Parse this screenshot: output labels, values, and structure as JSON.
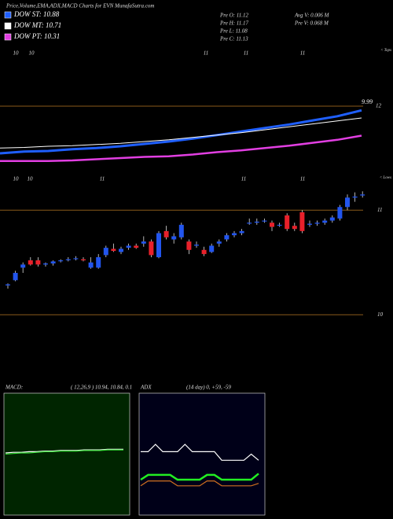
{
  "header": {
    "title": "Price,Volume,EMA,ADX,MACD Charts for EVN MunafaSutra.com",
    "info": [
      "Pre  O: 11.12",
      "Pre  H: 11.17",
      "Pre  L: 11.08",
      "Pre  C: 11.13"
    ],
    "info2": [
      "Avg V: 0.006  M",
      "Pre  V: 0.068  M"
    ]
  },
  "chart_data": [
    {
      "type": "line",
      "top_labels": [
        "10",
        "10",
        "11",
        "11",
        "11"
      ],
      "side_label": "< Tops",
      "annotation": "9.99",
      "ylim": [
        11,
        13
      ],
      "yticks": [
        12
      ],
      "legend": "top-left",
      "series": [
        {
          "name": "DOW ST: 10.88",
          "color": "#1f5fff",
          "values": [
            11.2,
            11.23,
            11.24,
            11.27,
            11.29,
            11.32,
            11.36,
            11.4,
            11.45,
            11.51,
            11.57,
            11.63,
            11.69,
            11.76,
            11.83,
            11.93
          ]
        },
        {
          "name": "DOW MT: 10.71",
          "color": "#ffffff",
          "values": [
            11.29,
            11.3,
            11.32,
            11.33,
            11.35,
            11.37,
            11.4,
            11.43,
            11.47,
            11.51,
            11.55,
            11.6,
            11.65,
            11.7,
            11.75,
            11.8
          ]
        },
        {
          "name": "DOW PT: 10.31",
          "color": "#e23fe2",
          "values": [
            11.07,
            11.07,
            11.07,
            11.08,
            11.1,
            11.12,
            11.14,
            11.15,
            11.18,
            11.22,
            11.25,
            11.29,
            11.33,
            11.38,
            11.43,
            11.5
          ]
        }
      ]
    },
    {
      "type": "candlestick",
      "top_labels": [
        "10",
        "10",
        "11",
        "11",
        "11"
      ],
      "side_label": "< Lows",
      "ylim": [
        9.4,
        11.28
      ],
      "yticks": [
        10,
        11
      ],
      "up_color": "#2255ee",
      "down_color": "#e8202a",
      "open": [
        10.28,
        10.33,
        10.45,
        10.52,
        10.52,
        10.48,
        10.49,
        10.52,
        10.53,
        10.54,
        10.53,
        10.45,
        10.45,
        10.57,
        10.63,
        10.6,
        10.64,
        10.66,
        10.68,
        10.7,
        10.55,
        10.8,
        10.72,
        10.74,
        10.7,
        10.66,
        10.62,
        10.6,
        10.68,
        10.72,
        10.76,
        10.78,
        10.88,
        10.88,
        10.9,
        10.88,
        10.86,
        10.95,
        10.85,
        10.98,
        10.86,
        10.87,
        10.88,
        10.9,
        10.92,
        11.03,
        11.12,
        11.14
      ],
      "high": [
        10.3,
        10.42,
        10.5,
        10.55,
        10.55,
        10.5,
        10.52,
        10.53,
        10.55,
        10.56,
        10.55,
        10.55,
        10.58,
        10.66,
        10.68,
        10.65,
        10.68,
        10.68,
        10.75,
        10.72,
        10.8,
        10.85,
        10.78,
        10.88,
        10.72,
        10.7,
        10.65,
        10.68,
        10.72,
        10.78,
        10.8,
        10.82,
        10.92,
        10.92,
        10.92,
        10.9,
        10.88,
        10.97,
        10.88,
        11.0,
        10.9,
        10.9,
        10.92,
        10.95,
        11.05,
        11.15,
        11.17,
        11.18
      ],
      "low": [
        10.25,
        10.32,
        10.4,
        10.47,
        10.46,
        10.46,
        10.47,
        10.5,
        10.51,
        10.52,
        10.51,
        10.44,
        10.44,
        10.55,
        10.6,
        10.58,
        10.62,
        10.63,
        10.65,
        10.55,
        10.54,
        10.72,
        10.68,
        10.72,
        10.58,
        10.64,
        10.56,
        10.59,
        10.65,
        10.7,
        10.74,
        10.76,
        10.86,
        10.86,
        10.88,
        10.8,
        10.84,
        10.8,
        10.8,
        10.78,
        10.84,
        10.85,
        10.86,
        10.88,
        10.9,
        11.0,
        11.08,
        11.12
      ],
      "close": [
        10.29,
        10.4,
        10.48,
        10.48,
        10.48,
        10.49,
        10.51,
        10.52,
        10.53,
        10.54,
        10.52,
        10.5,
        10.55,
        10.64,
        10.61,
        10.63,
        10.66,
        10.64,
        10.7,
        10.57,
        10.78,
        10.74,
        10.75,
        10.86,
        10.62,
        10.67,
        10.58,
        10.66,
        10.7,
        10.76,
        10.78,
        10.8,
        10.88,
        10.89,
        10.9,
        10.84,
        10.86,
        10.82,
        10.82,
        10.8,
        10.87,
        10.88,
        10.9,
        10.93,
        11.03,
        11.12,
        11.13,
        11.15
      ]
    },
    {
      "type": "line",
      "title": "MACD:",
      "subtitle": "( 12,26,9 ) 10.94, 10.84, 0.1",
      "ylim": [
        -1,
        1
      ],
      "background": "#002500",
      "series": [
        {
          "color": "#ffffff",
          "values": [
            0.02,
            0.03,
            0.03,
            0.04,
            0.04,
            0.05,
            0.05,
            0.06,
            0.06,
            0.06,
            0.07,
            0.07,
            0.07,
            0.08,
            0.08,
            0.08
          ]
        },
        {
          "color": "#33dd33",
          "values": [
            0.0,
            0.01,
            0.02,
            0.02,
            0.03,
            0.04,
            0.04,
            0.05,
            0.05,
            0.05,
            0.06,
            0.06,
            0.06,
            0.07,
            0.07,
            0.07
          ]
        }
      ]
    },
    {
      "type": "line",
      "title": "ADX",
      "subtitle": "(14 day) 0, +59, -59",
      "ylim": [
        0,
        100
      ],
      "background": "#000018",
      "series": [
        {
          "color": "#ffffff",
          "values": [
            52,
            52,
            58,
            52,
            52,
            52,
            58,
            52,
            52,
            52,
            52,
            45,
            45,
            45,
            45,
            50,
            45
          ]
        },
        {
          "color": "#22ee22",
          "values": [
            29,
            33,
            33,
            33,
            33,
            29,
            29,
            29,
            29,
            33,
            33,
            29,
            29,
            29,
            29,
            29,
            34
          ]
        },
        {
          "color": "#d07020",
          "values": [
            24,
            28,
            28,
            28,
            28,
            24,
            24,
            24,
            24,
            28,
            28,
            24,
            24,
            24,
            24,
            24,
            26
          ]
        }
      ]
    }
  ]
}
